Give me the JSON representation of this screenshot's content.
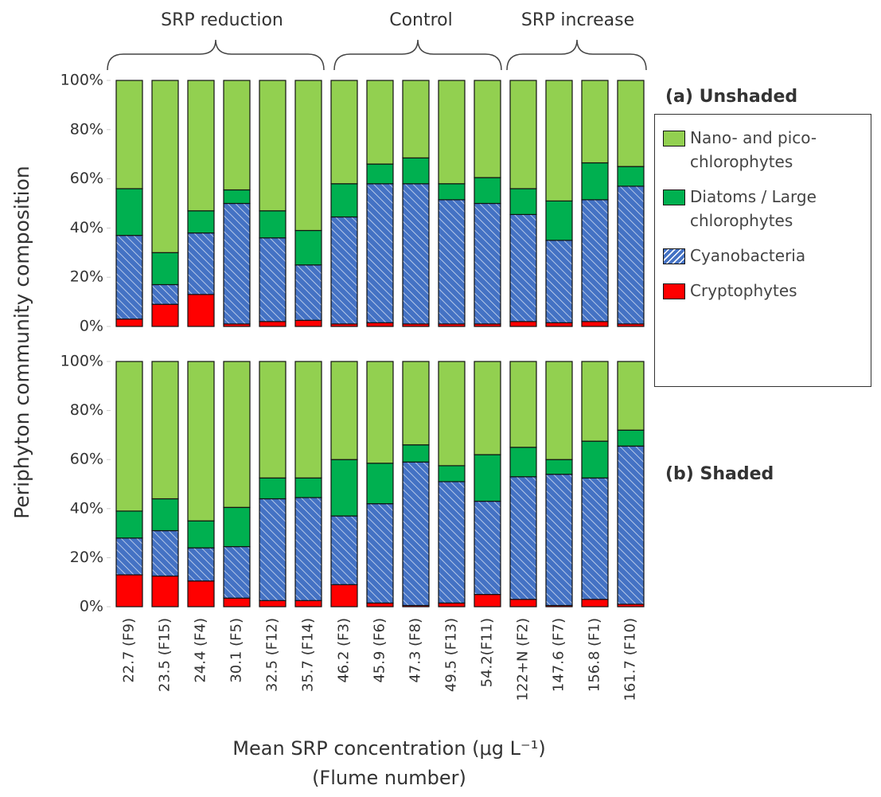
{
  "chart_data": [
    {
      "type": "stacked_bar",
      "title": "(a) Unshaded",
      "ylabel": "Periphyton community composition",
      "group_labels": [
        "SRP reduction",
        "Control",
        "SRP increase"
      ],
      "ylim": [
        0,
        100
      ],
      "yticks": [
        {
          "value": 0,
          "label": "0%"
        },
        {
          "value": 20,
          "label": "20%"
        },
        {
          "value": 40,
          "label": "40%"
        },
        {
          "value": 60,
          "label": "60%"
        },
        {
          "value": 80,
          "label": "80%"
        },
        {
          "value": 100,
          "label": "100%"
        }
      ],
      "legend": "right",
      "series": [
        {
          "name": "Cryptophytes",
          "color": "#ff0000",
          "values": [
            3,
            9,
            13,
            1,
            2,
            2.5,
            1,
            1.5,
            1,
            1,
            1,
            2,
            1.5,
            2,
            1
          ]
        },
        {
          "name": "Cyanobacteria",
          "color": "#4472c4",
          "hatch": true,
          "values": [
            34,
            8,
            25,
            49,
            34,
            22.5,
            43.5,
            56.5,
            57,
            50.5,
            49,
            43.5,
            33.5,
            49.5,
            56
          ]
        },
        {
          "name": "Diatoms / Large chlorophytes",
          "color": "#00b050",
          "values": [
            19,
            13,
            9,
            5.5,
            11,
            14,
            13.5,
            8,
            10.5,
            6.5,
            10.5,
            10.5,
            16,
            15,
            8
          ]
        },
        {
          "name": "Nano- and pico-chlorophytes",
          "color": "#92d050",
          "values": [
            44,
            70,
            53,
            44.5,
            53,
            61,
            42,
            34,
            31.5,
            42,
            39.5,
            44,
            49,
            33.5,
            35
          ]
        }
      ]
    },
    {
      "type": "stacked_bar",
      "title": "(b) Shaded",
      "xlabel": [
        "Mean SRP concentration (μg L⁻¹)",
        "(Flume number)"
      ],
      "categories": [
        "22.7 (F9)",
        "23.5 (F15)",
        "24.4 (F4)",
        "30.1 (F5)",
        "32.5 (F12)",
        "35.7 (F14)",
        "46.2 (F3)",
        "45.9 (F6)",
        "47.3 (F8)",
        "49.5 (F13)",
        "54.2(F11)",
        "122+N (F2)",
        "147.6 (F7)",
        "156.8 (F1)",
        "161.7 (F10)"
      ],
      "ylim": [
        0,
        100
      ],
      "yticks": [
        {
          "value": 0,
          "label": "0%"
        },
        {
          "value": 20,
          "label": "20%"
        },
        {
          "value": 40,
          "label": "40%"
        },
        {
          "value": 60,
          "label": "60%"
        },
        {
          "value": 80,
          "label": "80%"
        },
        {
          "value": 100,
          "label": "100%"
        }
      ],
      "series": [
        {
          "name": "Cryptophytes",
          "color": "#ff0000",
          "values": [
            13,
            12.5,
            10.5,
            3.5,
            2.5,
            2.5,
            9,
            1.5,
            0.5,
            1.5,
            5,
            3,
            0.5,
            3,
            1
          ]
        },
        {
          "name": "Cyanobacteria",
          "color": "#4472c4",
          "hatch": true,
          "values": [
            15,
            18.5,
            13.5,
            21,
            41.5,
            42,
            28,
            40.5,
            58.5,
            49.5,
            38,
            50,
            53.5,
            49.5,
            64.5
          ]
        },
        {
          "name": "Diatoms / Large chlorophytes",
          "color": "#00b050",
          "values": [
            11,
            13,
            11,
            16,
            8.5,
            8,
            23,
            16.5,
            7,
            6.5,
            19,
            12,
            6,
            15,
            6.5
          ]
        },
        {
          "name": "Nano- and pico-chlorophytes",
          "color": "#92d050",
          "values": [
            61,
            56,
            65,
            59.5,
            47.5,
            47.5,
            40,
            41.5,
            34,
            42.5,
            38,
            35,
            40,
            32.5,
            28
          ]
        }
      ]
    }
  ]
}
